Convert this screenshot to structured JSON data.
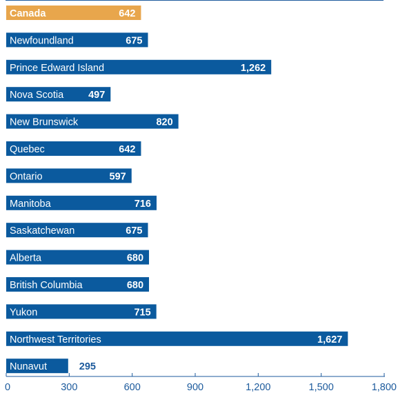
{
  "chart_data": {
    "type": "bar",
    "orientation": "horizontal",
    "categories": [
      "Canada",
      "Newfoundland",
      "Prince Edward Island",
      "Nova Scotia",
      "New Brunswick",
      "Quebec",
      "Ontario",
      "Manitoba",
      "Saskatchewan",
      "Alberta",
      "British Columbia",
      "Yukon",
      "Northwest Territories",
      "Nunavut"
    ],
    "values": [
      642,
      675,
      1262,
      497,
      820,
      642,
      597,
      716,
      675,
      680,
      680,
      715,
      1627,
      295
    ],
    "value_labels": [
      "642",
      "675",
      "1,262",
      "497",
      "820",
      "642",
      "597",
      "716",
      "675",
      "680",
      "680",
      "715",
      "1,627",
      "295"
    ],
    "highlight_category": "Canada",
    "xlim": [
      0,
      1800
    ],
    "xticks": [
      0,
      300,
      600,
      900,
      1200,
      1500,
      1800
    ],
    "xtick_labels": [
      "0",
      "300",
      "600",
      "900",
      "1,200",
      "1,500",
      "1,800"
    ],
    "title": "",
    "xlabel": "",
    "ylabel": "",
    "grid": false,
    "legend": "none"
  },
  "colors": {
    "bar": "#0b5a9e",
    "highlight": "#e8a64c",
    "axis": "#1c5a9c"
  }
}
